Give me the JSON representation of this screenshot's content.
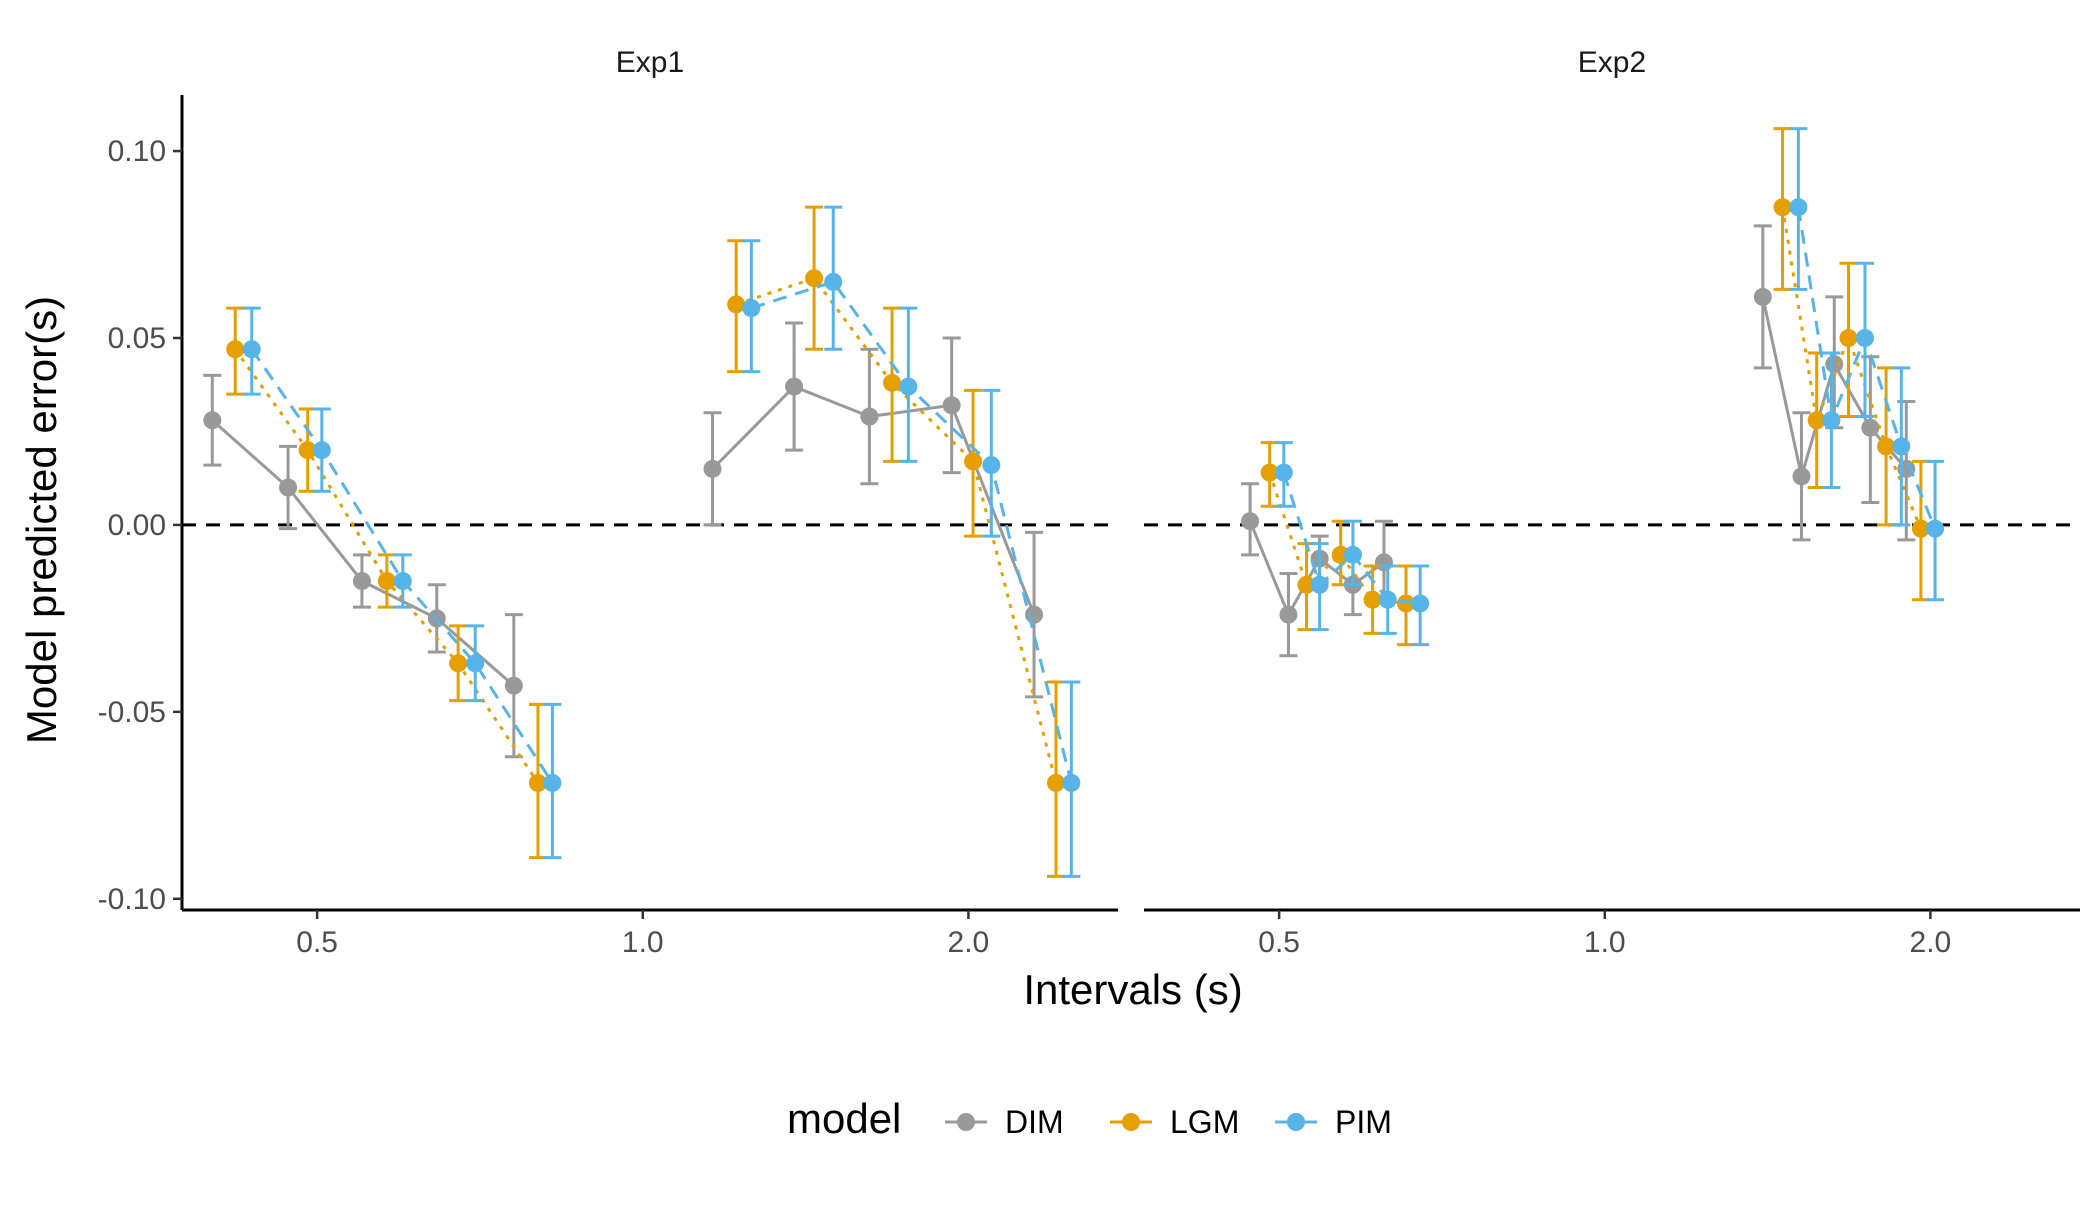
{
  "chart_data": {
    "type": "line",
    "ylabel": "Model predicted error(s)",
    "xlabel": "Intervals (s)",
    "x_scale": "log",
    "ylim": [
      -0.103,
      0.115
    ],
    "yticks": [
      -0.1,
      -0.05,
      0.0,
      0.05,
      0.1
    ],
    "ytick_labels": [
      "-0.10",
      "-0.05",
      "0.00",
      "0.05",
      "0.10"
    ],
    "xticks": [
      0.5,
      1.0,
      2.0
    ],
    "xtick_labels": [
      "0.5",
      "1.0",
      "2.0"
    ],
    "reference_line": {
      "y": 0,
      "style": "dashed",
      "color": "#000000"
    },
    "grid": false,
    "legend": {
      "title": "model",
      "position": "bottom",
      "entries": [
        {
          "name": "DIM",
          "color": "#999999",
          "linestyle": "solid"
        },
        {
          "name": "LGM",
          "color": "#E69F00",
          "linestyle": "dotted"
        },
        {
          "name": "PIM",
          "color": "#56B4E9",
          "linestyle": "dashed"
        }
      ]
    },
    "panels": [
      {
        "title": "Exp1",
        "xlim": [
          0.375,
          2.75
        ],
        "series": [
          {
            "name": "DIM",
            "groups": [
              [
                {
                  "x": 0.4,
                  "y": 0.028,
                  "lo": 0.016,
                  "hi": 0.04
                },
                {
                  "x": 0.47,
                  "y": 0.01,
                  "lo": -0.001,
                  "hi": 0.021
                },
                {
                  "x": 0.55,
                  "y": -0.015,
                  "lo": -0.022,
                  "hi": -0.008
                },
                {
                  "x": 0.645,
                  "y": -0.025,
                  "lo": -0.034,
                  "hi": -0.016
                },
                {
                  "x": 0.76,
                  "y": -0.043,
                  "lo": -0.062,
                  "hi": -0.024
                }
              ],
              [
                {
                  "x": 1.16,
                  "y": 0.015,
                  "lo": 0.0,
                  "hi": 0.03
                },
                {
                  "x": 1.38,
                  "y": 0.037,
                  "lo": 0.02,
                  "hi": 0.054
                },
                {
                  "x": 1.62,
                  "y": 0.029,
                  "lo": 0.011,
                  "hi": 0.047
                },
                {
                  "x": 1.93,
                  "y": 0.032,
                  "lo": 0.014,
                  "hi": 0.05
                },
                {
                  "x": 2.3,
                  "y": -0.024,
                  "lo": -0.046,
                  "hi": -0.002
                }
              ]
            ]
          },
          {
            "name": "LGM",
            "groups": [
              [
                {
                  "x": 0.42,
                  "y": 0.047,
                  "lo": 0.035,
                  "hi": 0.058
                },
                {
                  "x": 0.49,
                  "y": 0.02,
                  "lo": 0.009,
                  "hi": 0.031
                },
                {
                  "x": 0.58,
                  "y": -0.015,
                  "lo": -0.022,
                  "hi": -0.008
                },
                {
                  "x": 0.675,
                  "y": -0.037,
                  "lo": -0.047,
                  "hi": -0.027
                },
                {
                  "x": 0.8,
                  "y": -0.069,
                  "lo": -0.089,
                  "hi": -0.048
                }
              ],
              [
                {
                  "x": 1.22,
                  "y": 0.059,
                  "lo": 0.041,
                  "hi": 0.076
                },
                {
                  "x": 1.44,
                  "y": 0.066,
                  "lo": 0.047,
                  "hi": 0.085
                },
                {
                  "x": 1.7,
                  "y": 0.038,
                  "lo": 0.017,
                  "hi": 0.058
                },
                {
                  "x": 2.02,
                  "y": 0.017,
                  "lo": -0.003,
                  "hi": 0.036
                },
                {
                  "x": 2.41,
                  "y": -0.069,
                  "lo": -0.094,
                  "hi": -0.042
                }
              ]
            ]
          },
          {
            "name": "PIM",
            "groups": [
              [
                {
                  "x": 0.435,
                  "y": 0.047,
                  "lo": 0.035,
                  "hi": 0.058
                },
                {
                  "x": 0.505,
                  "y": 0.02,
                  "lo": 0.009,
                  "hi": 0.031
                },
                {
                  "x": 0.6,
                  "y": -0.015,
                  "lo": -0.022,
                  "hi": -0.008
                },
                {
                  "x": 0.7,
                  "y": -0.037,
                  "lo": -0.047,
                  "hi": -0.027
                },
                {
                  "x": 0.825,
                  "y": -0.069,
                  "lo": -0.089,
                  "hi": -0.048
                }
              ],
              [
                {
                  "x": 1.26,
                  "y": 0.058,
                  "lo": 0.041,
                  "hi": 0.076
                },
                {
                  "x": 1.5,
                  "y": 0.065,
                  "lo": 0.047,
                  "hi": 0.085
                },
                {
                  "x": 1.76,
                  "y": 0.037,
                  "lo": 0.017,
                  "hi": 0.058
                },
                {
                  "x": 2.1,
                  "y": 0.016,
                  "lo": -0.003,
                  "hi": 0.036
                },
                {
                  "x": 2.49,
                  "y": -0.069,
                  "lo": -0.094,
                  "hi": -0.042
                }
              ]
            ]
          }
        ]
      },
      {
        "title": "Exp2",
        "xlim": [
          0.375,
          2.75
        ],
        "series": [
          {
            "name": "DIM",
            "groups": [
              [
                {
                  "x": 0.47,
                  "y": 0.001,
                  "lo": -0.008,
                  "hi": 0.011
                },
                {
                  "x": 0.51,
                  "y": -0.024,
                  "lo": -0.035,
                  "hi": -0.013
                },
                {
                  "x": 0.545,
                  "y": -0.009,
                  "lo": -0.015,
                  "hi": -0.003
                },
                {
                  "x": 0.585,
                  "y": -0.016,
                  "lo": -0.024,
                  "hi": -0.008
                },
                {
                  "x": 0.625,
                  "y": -0.01,
                  "lo": -0.02,
                  "hi": 0.001
                }
              ],
              [
                {
                  "x": 1.4,
                  "y": 0.061,
                  "lo": 0.042,
                  "hi": 0.08
                },
                {
                  "x": 1.52,
                  "y": 0.013,
                  "lo": -0.004,
                  "hi": 0.03
                },
                {
                  "x": 1.63,
                  "y": 0.043,
                  "lo": 0.026,
                  "hi": 0.061
                },
                {
                  "x": 1.76,
                  "y": 0.026,
                  "lo": 0.006,
                  "hi": 0.045
                },
                {
                  "x": 1.9,
                  "y": 0.015,
                  "lo": -0.004,
                  "hi": 0.033
                }
              ]
            ]
          },
          {
            "name": "LGM",
            "groups": [
              [
                {
                  "x": 0.49,
                  "y": 0.014,
                  "lo": 0.005,
                  "hi": 0.022
                },
                {
                  "x": 0.53,
                  "y": -0.016,
                  "lo": -0.028,
                  "hi": -0.005
                },
                {
                  "x": 0.57,
                  "y": -0.008,
                  "lo": -0.016,
                  "hi": 0.001
                },
                {
                  "x": 0.61,
                  "y": -0.02,
                  "lo": -0.029,
                  "hi": -0.011
                },
                {
                  "x": 0.655,
                  "y": -0.021,
                  "lo": -0.032,
                  "hi": -0.011
                }
              ],
              [
                {
                  "x": 1.46,
                  "y": 0.085,
                  "lo": 0.063,
                  "hi": 0.106
                },
                {
                  "x": 1.57,
                  "y": 0.028,
                  "lo": 0.01,
                  "hi": 0.046
                },
                {
                  "x": 1.68,
                  "y": 0.05,
                  "lo": 0.029,
                  "hi": 0.07
                },
                {
                  "x": 1.82,
                  "y": 0.021,
                  "lo": 0.0,
                  "hi": 0.042
                },
                {
                  "x": 1.96,
                  "y": -0.001,
                  "lo": -0.02,
                  "hi": 0.017
                }
              ]
            ]
          },
          {
            "name": "PIM",
            "groups": [
              [
                {
                  "x": 0.505,
                  "y": 0.014,
                  "lo": 0.005,
                  "hi": 0.022
                },
                {
                  "x": 0.545,
                  "y": -0.016,
                  "lo": -0.028,
                  "hi": -0.005
                },
                {
                  "x": 0.585,
                  "y": -0.008,
                  "lo": -0.016,
                  "hi": 0.001
                },
                {
                  "x": 0.63,
                  "y": -0.02,
                  "lo": -0.029,
                  "hi": -0.011
                },
                {
                  "x": 0.675,
                  "y": -0.021,
                  "lo": -0.032,
                  "hi": -0.011
                }
              ],
              [
                {
                  "x": 1.51,
                  "y": 0.085,
                  "lo": 0.063,
                  "hi": 0.106
                },
                {
                  "x": 1.62,
                  "y": 0.028,
                  "lo": 0.01,
                  "hi": 0.046
                },
                {
                  "x": 1.74,
                  "y": 0.05,
                  "lo": 0.029,
                  "hi": 0.07
                },
                {
                  "x": 1.88,
                  "y": 0.021,
                  "lo": 0.0,
                  "hi": 0.042
                },
                {
                  "x": 2.02,
                  "y": -0.001,
                  "lo": -0.02,
                  "hi": 0.017
                }
              ]
            ]
          }
        ]
      }
    ]
  }
}
